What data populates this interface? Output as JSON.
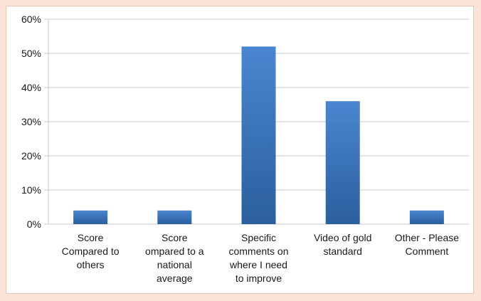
{
  "chart_data": {
    "type": "bar",
    "title": "",
    "xlabel": "",
    "ylabel": "",
    "categories": [
      [
        "Score",
        "Compared to",
        "others"
      ],
      [
        "Score",
        "ompared to a",
        "national",
        "average"
      ],
      [
        "Specific",
        "comments on",
        "where I need",
        "to improve"
      ],
      [
        "Video of gold",
        "standard"
      ],
      [
        "Other - Please",
        "Comment"
      ]
    ],
    "values": [
      0.04,
      0.04,
      0.52,
      0.36,
      0.04
    ],
    "ylim": [
      0,
      0.6
    ],
    "yticks": [
      "0%",
      "10%",
      "20%",
      "30%",
      "40%",
      "50%",
      "60%"
    ],
    "grid": true,
    "legend": "none"
  },
  "colors": {
    "bar_top": "#4a86d0",
    "bar_bottom": "#2b5f9e",
    "grid": "#c8c8c8",
    "frame_bg": "#fbe4d7"
  }
}
